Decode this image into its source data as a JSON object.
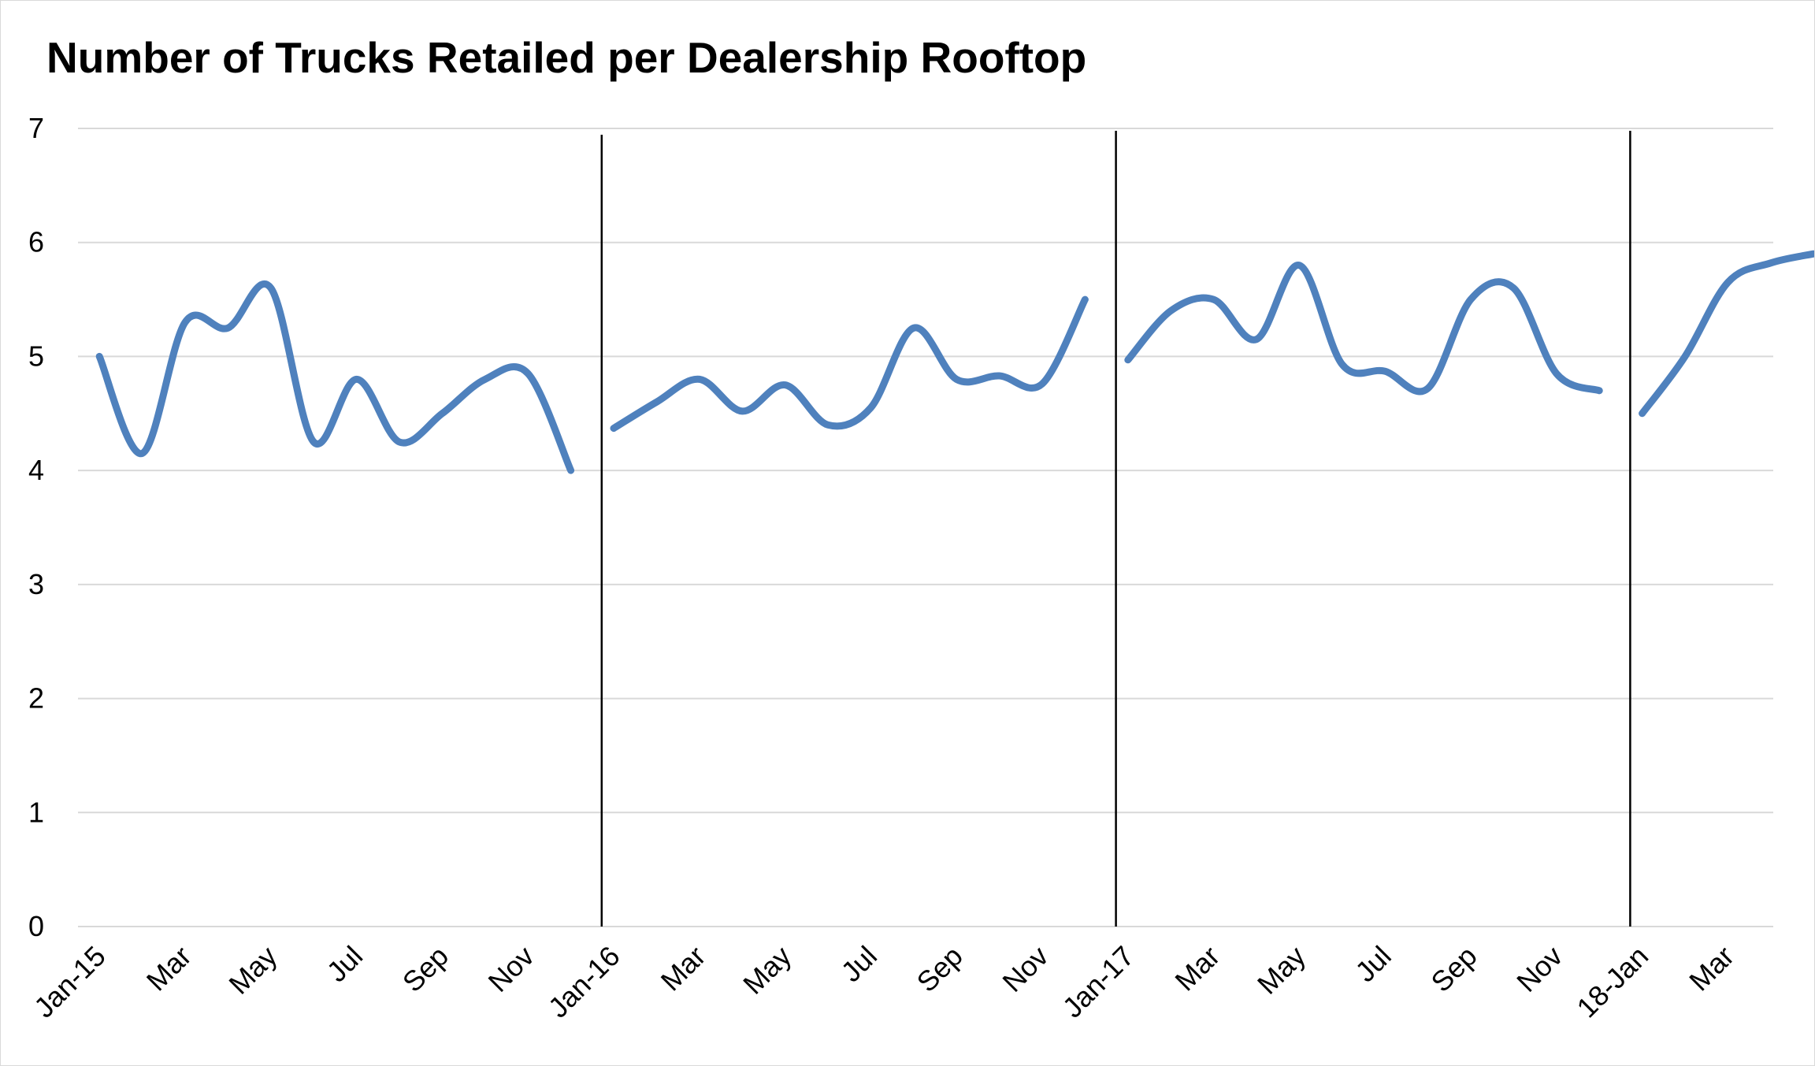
{
  "chart_data": {
    "type": "line",
    "title": "Number of Trucks Retailed per Dealership Rooftop",
    "xlabel": "",
    "ylabel": "",
    "ylim": [
      0,
      7
    ],
    "y_ticks": [
      "0",
      "1",
      "2",
      "3",
      "4",
      "5",
      "6",
      "7"
    ],
    "grid": true,
    "legend": "none",
    "smooth": true,
    "x_tick_labels": [
      "Jan-15",
      "Mar",
      "May",
      "Jul",
      "Sep",
      "Nov",
      "Jan-16",
      "Mar",
      "May",
      "Jul",
      "Sep",
      "Nov",
      "Jan-17",
      "Mar",
      "May",
      "Jul",
      "Sep",
      "Nov",
      "18-Jan",
      "Mar"
    ],
    "separators_after": [
      "Dec 2015",
      "Dec 2016",
      "Dec 2017"
    ],
    "series": [
      {
        "segment": "2015",
        "x": [
          "Jan 2015",
          "Feb 2015",
          "Mar 2015",
          "Apr 2015",
          "May 2015",
          "Jun 2015",
          "Jul 2015",
          "Aug 2015",
          "Sep 2015",
          "Oct 2015",
          "Nov 2015",
          "Dec 2015"
        ],
        "values": [
          5.0,
          4.15,
          5.3,
          5.25,
          5.6,
          4.25,
          4.8,
          4.25,
          4.5,
          4.8,
          4.85,
          4.0
        ]
      },
      {
        "segment": "2016",
        "x": [
          "Jan 2016",
          "Feb 2016",
          "Mar 2016",
          "Apr 2016",
          "May 2016",
          "Jun 2016",
          "Jul 2016",
          "Aug 2016",
          "Sep 2016",
          "Oct 2016",
          "Nov 2016",
          "Dec 2016"
        ],
        "values": [
          4.37,
          4.6,
          4.8,
          4.52,
          4.75,
          4.4,
          4.55,
          5.25,
          4.8,
          4.83,
          4.76,
          5.5
        ]
      },
      {
        "segment": "2017",
        "x": [
          "Jan 2017",
          "Feb 2017",
          "Mar 2017",
          "Apr 2017",
          "May 2017",
          "Jun 2017",
          "Jul 2017",
          "Aug 2017",
          "Sep 2017",
          "Oct 2017",
          "Nov 2017",
          "Dec 2017"
        ],
        "values": [
          4.97,
          5.4,
          5.5,
          5.15,
          5.8,
          4.93,
          4.87,
          4.72,
          5.5,
          5.6,
          4.85,
          4.7
        ]
      },
      {
        "segment": "2018",
        "x": [
          "Jan 2018",
          "Feb 2018",
          "Mar 2018",
          "Apr 2018",
          "May 2018"
        ],
        "values": [
          4.5,
          5.0,
          5.65,
          5.82,
          5.9
        ]
      }
    ],
    "colors": {
      "line": "#4f81bd",
      "grid": "#d9d9d9",
      "separator": "#000000"
    }
  }
}
